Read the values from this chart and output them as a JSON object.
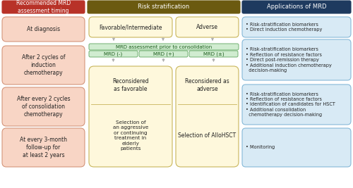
{
  "fig_width": 5.0,
  "fig_height": 2.67,
  "dpi": 100,
  "bg_color": "#ffffff",
  "header_left_color": "#b83228",
  "header_mid_color": "#6b5a10",
  "header_right_color": "#1e3a5f",
  "left_box_bg": "#f8d5c5",
  "left_box_border": "#d4957a",
  "mid_box_bg": "#fef8dc",
  "mid_box_border": "#c8b55a",
  "right_box_bg": "#d8eaf5",
  "right_box_border": "#85b8d8",
  "mrd_header_bg": "#d0ecd0",
  "mrd_header_border": "#70b070",
  "arrow_color": "#aaaaaa",
  "header_left": "Recommended MRD\nassessment timing",
  "header_mid": "Risk stratification",
  "header_right": "Applications of MRD",
  "left_boxes": [
    "At diagnosis",
    "After 2 cycles of\ninduction\nchemotherapy",
    "After every 2 cycles\nof consolidation\nchemotherapy",
    "At every 3-month\nfollow-up for\nat least 2 years"
  ],
  "right_boxes": [
    "• Risk-stratification biomarkers\n• Direct induction chemotherapy",
    "• Risk-stratification biomarkers\n• Reflection of resistance factors\n• Direct post-remission therapy\n• Additional induction chemotherapy\n  decision-making",
    "• Risk-stratification biomarkers\n• Reflection of resistance factors\n• Identification of candidates for HSCT\n• Additional consolidation\n  chemotherapy decision-making",
    "• Monitoring"
  ],
  "fav_label": "Favorable/Intermediate",
  "adv_label": "Adverse",
  "mrd_header_label": "MRD assessment prior to consolidation",
  "mrd_neg": "MRD (-)",
  "mrd_pos": "MRD (+)",
  "mrd_pm": "MRD (±)",
  "recon_fav": "Reconsidered\nas favorable",
  "sel_agg": "Selection of\nan aggressive\nor continuing\ntreatment in\nelderly\npatients",
  "recon_adv": "Reconsidered as\nadverse",
  "sel_allo": "Selection of AlloHSCT"
}
